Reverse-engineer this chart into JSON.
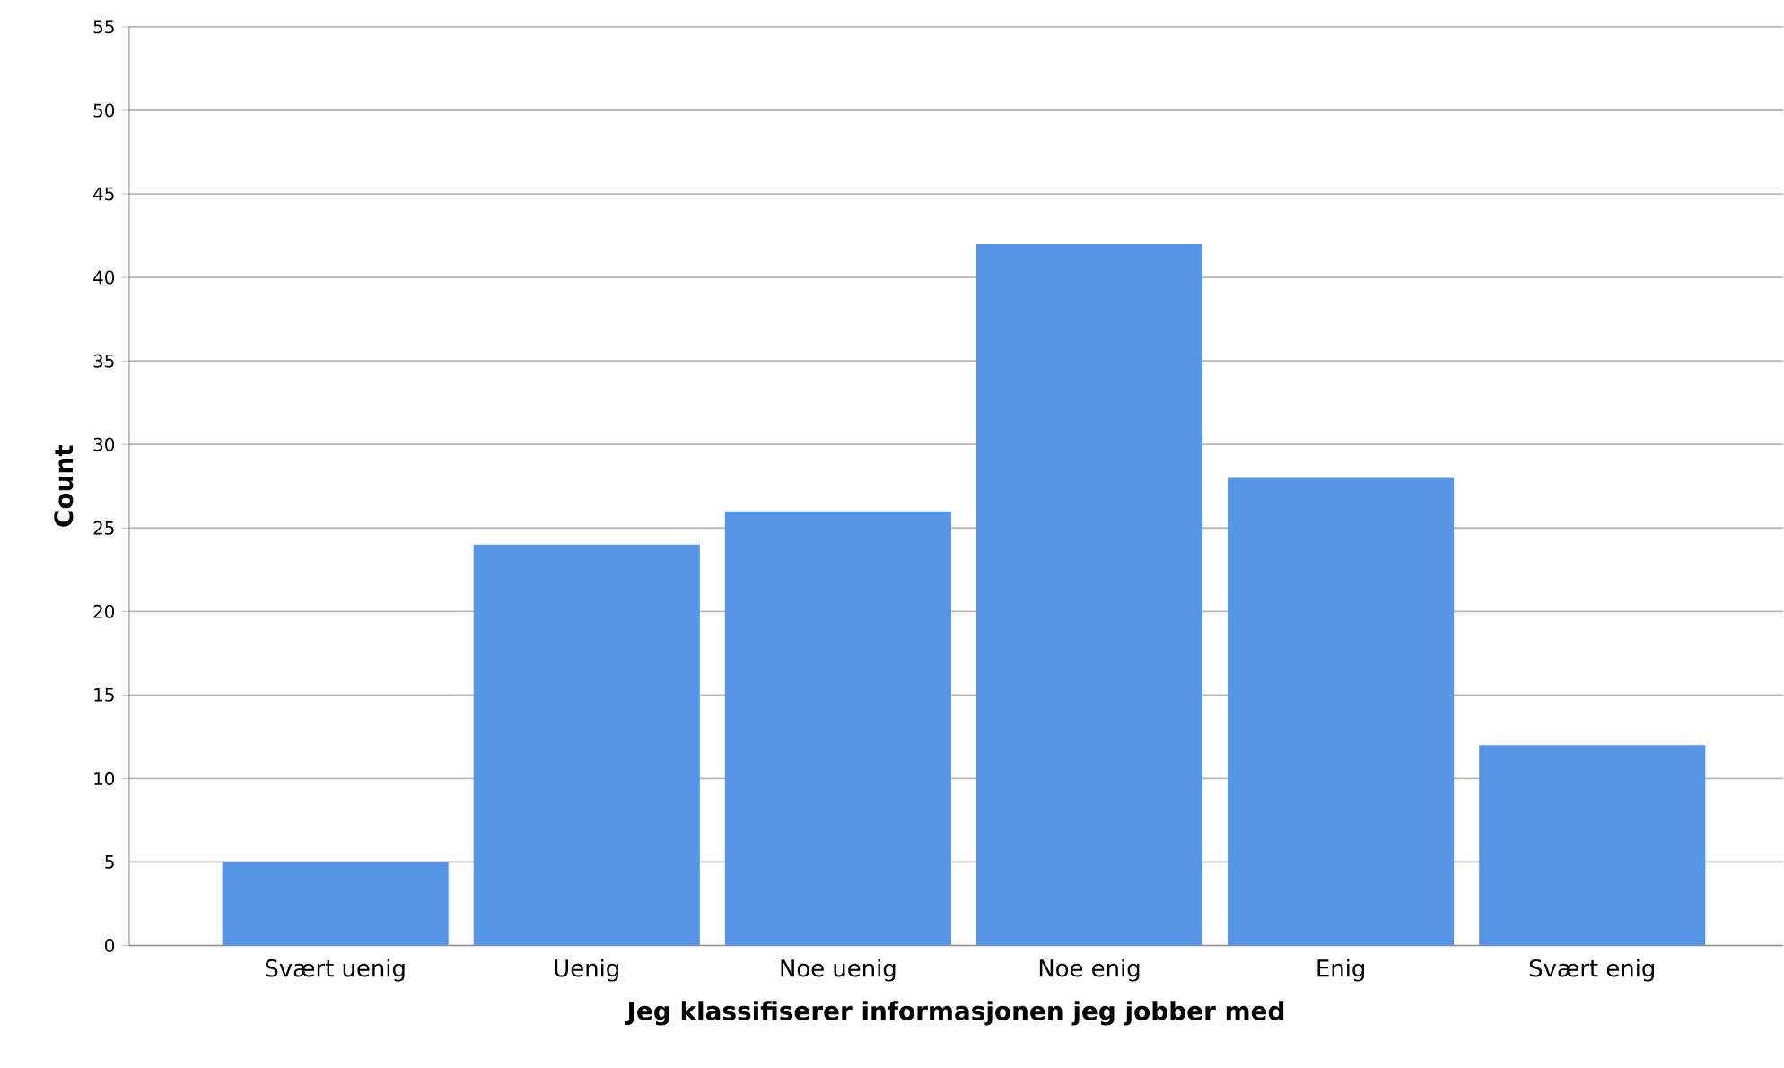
{
  "chart_data": {
    "type": "bar",
    "xlabel": "Jeg klassifiserer informasjonen jeg jobber med",
    "ylabel": "Count",
    "categories": [
      "Svært uenig",
      "Uenig",
      "Noe uenig",
      "Noe enig",
      "Enig",
      "Svært enig"
    ],
    "values": [
      5,
      24,
      26,
      42,
      28,
      12
    ],
    "color": "#5596e6",
    "ylim": [
      0,
      55
    ],
    "yticks": [
      0,
      5,
      10,
      15,
      20,
      25,
      30,
      35,
      40,
      45,
      50,
      55
    ],
    "grid": "y"
  }
}
